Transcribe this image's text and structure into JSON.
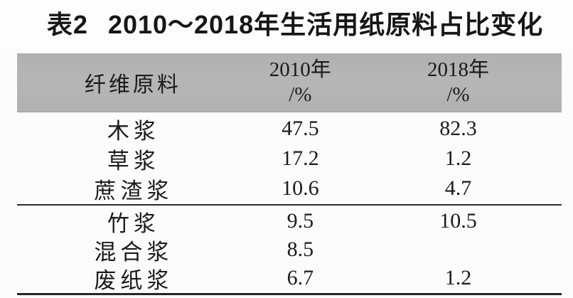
{
  "title": {
    "number": "表2",
    "caption": "2010～2018年生活用纸原料占比变化"
  },
  "table": {
    "header": {
      "material": "纤维原料",
      "col2010_line1": "2010年",
      "col2010_line2": "/%",
      "col2018_line1": "2018年",
      "col2018_line2": "/%"
    },
    "rows": [
      {
        "material": "木浆",
        "y2010": "47.5",
        "y2018": "82.3"
      },
      {
        "material": "草浆",
        "y2010": "17.2",
        "y2018": "1.2"
      },
      {
        "material": "蔗渣浆",
        "y2010": "10.6",
        "y2018": "4.7"
      },
      {
        "material": "竹浆",
        "y2010": "9.5",
        "y2018": "10.5"
      },
      {
        "material": "混合浆",
        "y2010": "8.5",
        "y2018": ""
      },
      {
        "material": "废纸浆",
        "y2010": "6.7",
        "y2018": "1.2"
      }
    ]
  },
  "colors": {
    "header_bg": "#b4b4b4",
    "text": "#1b1b1b",
    "rule": "#2c2c2c",
    "page_bg": "#fcfcfc"
  }
}
